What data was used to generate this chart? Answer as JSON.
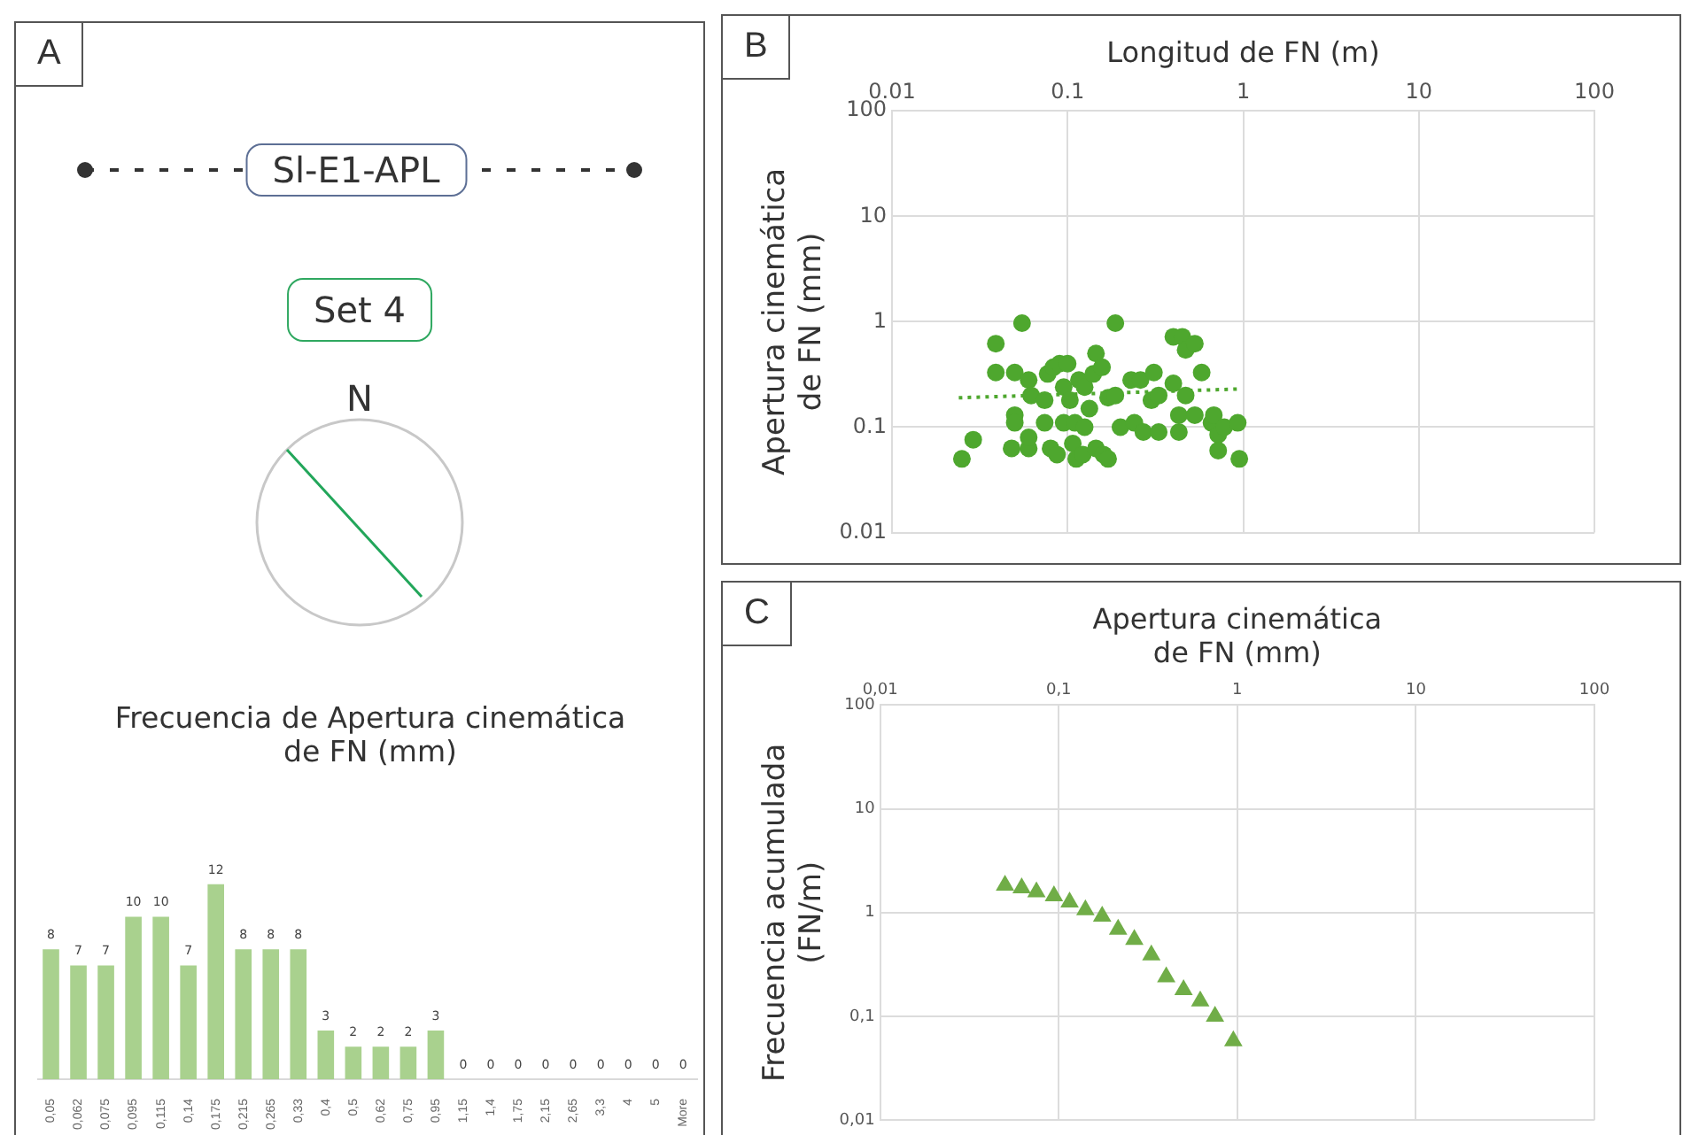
{
  "chart_data": [
    {
      "type": "bar",
      "title": "Frecuencia de Apertura cinemática de FN (mm)",
      "annotations": [
        "A",
        "Sl-E1-APL",
        "Set 4",
        "N"
      ],
      "categories": [
        "0,05",
        "0,062",
        "0,075",
        "0,095",
        "0,115",
        "0,14",
        "0,175",
        "0,215",
        "0,265",
        "0,33",
        "0,4",
        "0,5",
        "0,62",
        "0,75",
        "0,95",
        "1,15",
        "1,4",
        "1,75",
        "2,15",
        "2,65",
        "3,3",
        "4",
        "5",
        "More"
      ],
      "values": [
        8,
        7,
        7,
        10,
        10,
        7,
        12,
        8,
        8,
        8,
        3,
        2,
        2,
        2,
        3,
        0,
        0,
        0,
        0,
        0,
        0,
        0,
        0,
        0
      ],
      "color": "#a9d18e",
      "data_labels": true
    },
    {
      "type": "scatter",
      "annotations": [
        "B"
      ],
      "xlabel": "Longitud de FN (m)",
      "ylabel": "Apertura cinemática de FN (mm)",
      "log": "xy",
      "grid": true,
      "marker": "circle",
      "xlim": [
        0.01,
        100
      ],
      "xticks": [
        0.01,
        0.1,
        1,
        10,
        100
      ],
      "ylim": [
        0.01,
        100
      ],
      "yticks": [
        0.01,
        0.1,
        1,
        10,
        100
      ],
      "series": [
        {
          "color": "#4ea72e",
          "x": [
            0.025,
            0.029,
            0.039,
            0.039,
            0.05,
            0.055,
            0.05,
            0.05,
            0.06,
            0.062,
            0.048,
            0.06,
            0.06,
            0.074,
            0.077,
            0.083,
            0.074,
            0.08,
            0.087,
            0.09,
            0.1,
            0.095,
            0.095,
            0.103,
            0.107,
            0.112,
            0.122,
            0.11,
            0.116,
            0.125,
            0.133,
            0.125,
            0.14,
            0.145,
            0.157,
            0.145,
            0.16,
            0.17,
            0.17,
            0.187,
            0.187,
            0.2,
            0.23,
            0.26,
            0.24,
            0.27,
            0.3,
            0.31,
            0.33,
            0.33,
            0.4,
            0.45,
            0.4,
            0.43,
            0.43,
            0.47,
            0.53,
            0.47,
            0.58,
            0.53,
            0.66,
            0.68,
            0.72,
            0.78,
            0.72,
            0.93,
            0.95
          ],
          "values": [
            0.05,
            0.076,
            0.62,
            0.33,
            0.33,
            0.97,
            0.13,
            0.11,
            0.28,
            0.2,
            0.063,
            0.063,
            0.08,
            0.18,
            0.32,
            0.37,
            0.11,
            0.063,
            0.055,
            0.4,
            0.4,
            0.24,
            0.11,
            0.18,
            0.07,
            0.05,
            0.055,
            0.11,
            0.28,
            0.24,
            0.15,
            0.1,
            0.32,
            0.5,
            0.37,
            0.063,
            0.055,
            0.05,
            0.19,
            0.97,
            0.2,
            0.1,
            0.28,
            0.28,
            0.11,
            0.09,
            0.18,
            0.33,
            0.09,
            0.2,
            0.72,
            0.72,
            0.26,
            0.13,
            0.09,
            0.54,
            0.62,
            0.2,
            0.33,
            0.13,
            0.11,
            0.13,
            0.085,
            0.1,
            0.06,
            0.11,
            0.05
          ]
        },
        {
          "type": "line",
          "color": "#4ea72e",
          "line_style": "dotted",
          "marker": "none",
          "x": [
            0.024,
            0.93
          ],
          "values": [
            0.19,
            0.23
          ]
        }
      ]
    },
    {
      "type": "scatter",
      "annotations": [
        "C"
      ],
      "xlabel": "Apertura cinemática de FN (mm)",
      "ylabel": "Frecuencia acumulada (FN/m)",
      "log": "xy",
      "grid": true,
      "marker": "triangle",
      "xlim": [
        0.01,
        100
      ],
      "xticks": [
        {
          "value": 0.01,
          "label": "0,01"
        },
        {
          "value": 0.1,
          "label": "0,1"
        },
        1,
        10,
        100
      ],
      "ylim": [
        0.01,
        100
      ],
      "yticks": [
        {
          "value": 0.01,
          "label": "0,01"
        },
        {
          "value": 0.1,
          "label": "0,1"
        },
        1,
        10,
        100
      ],
      "series": [
        {
          "color": "#70ad47",
          "x": [
            0.05,
            0.062,
            0.075,
            0.094,
            0.115,
            0.141,
            0.175,
            0.215,
            0.265,
            0.33,
            0.4,
            0.5,
            0.62,
            0.75,
            0.95
          ],
          "values": [
            1.83,
            1.73,
            1.58,
            1.45,
            1.26,
            1.06,
            0.92,
            0.69,
            0.55,
            0.39,
            0.24,
            0.18,
            0.14,
            0.1,
            0.058
          ]
        }
      ]
    }
  ]
}
